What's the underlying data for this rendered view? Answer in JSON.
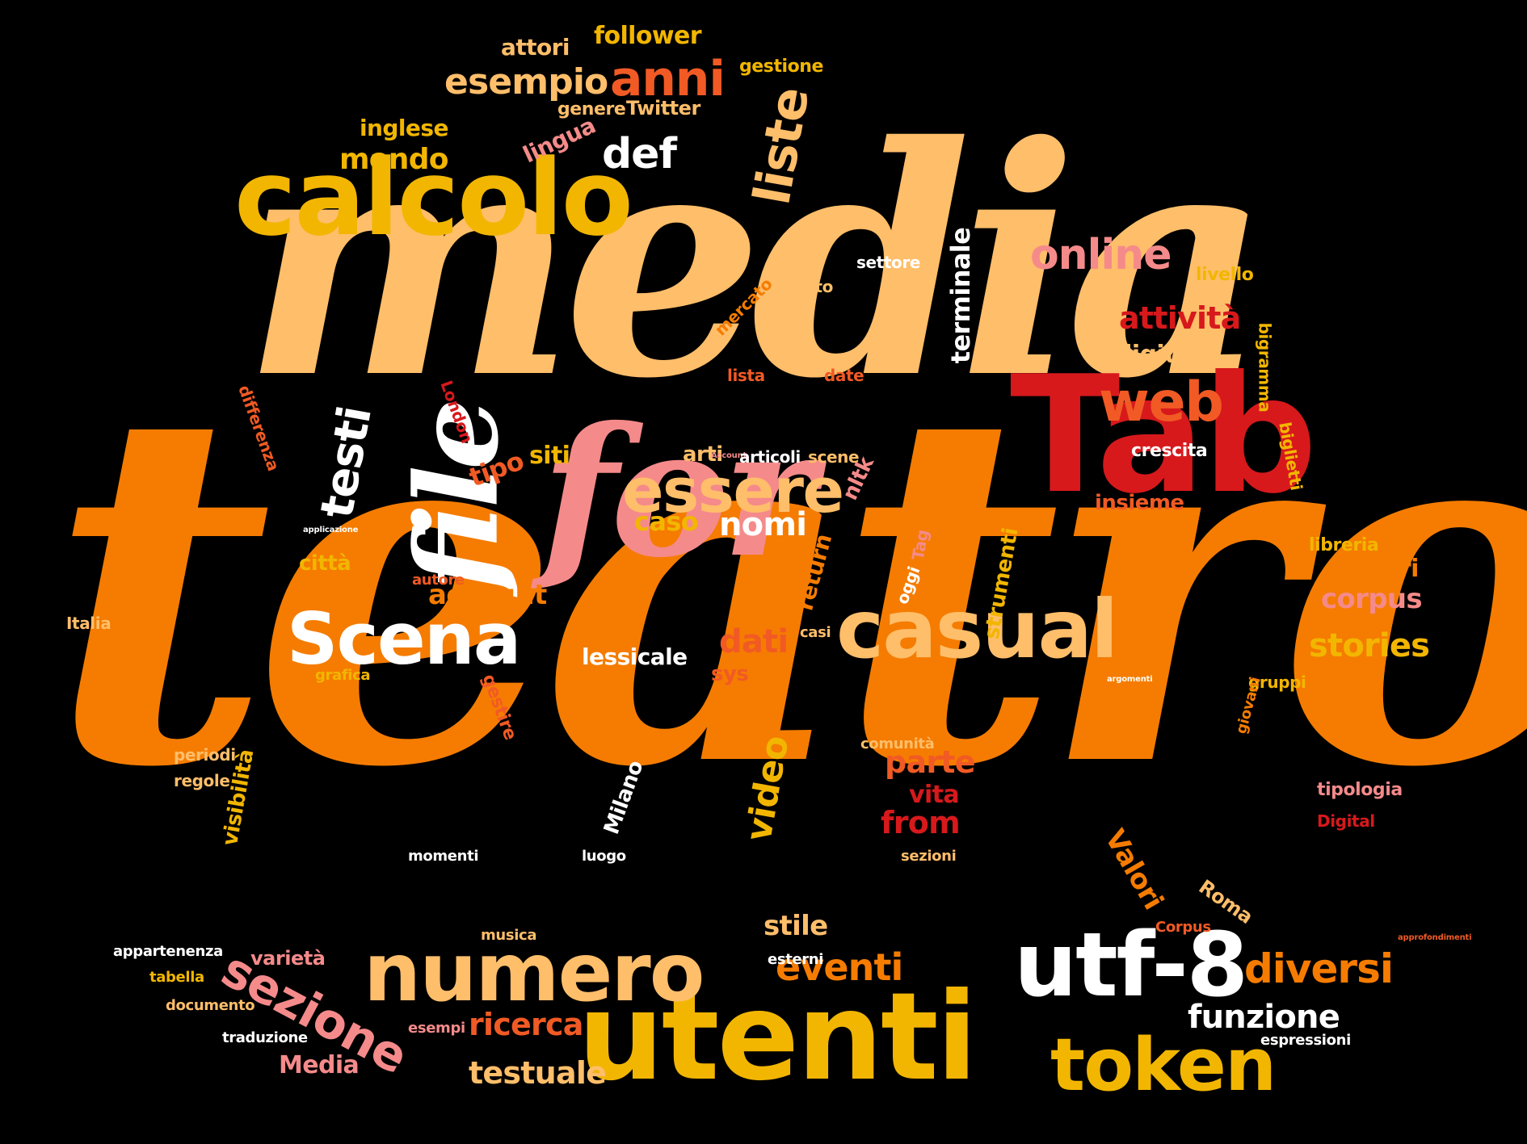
{
  "cloud": {
    "colors": {
      "background": "#000000",
      "orange": "#F57C00",
      "peach": "#FFBE6A",
      "gold": "#F2B600",
      "red": "#D7191C",
      "redorange": "#F15A24",
      "pink": "#F58A8A",
      "white": "#FFFFFF"
    },
    "words": [
      {
        "text": "teatro",
        "color": "#F57C00"
      },
      {
        "text": "media",
        "color": "#FFBE6A"
      },
      {
        "text": "calcolo",
        "color": "#F2B600"
      },
      {
        "text": "for",
        "color": "#F58A8A"
      },
      {
        "text": "Tab",
        "color": "#D7191C"
      },
      {
        "text": "file",
        "color": "#FFFFFF"
      },
      {
        "text": "utenti",
        "color": "#F2B600"
      },
      {
        "text": "numero",
        "color": "#FFBE6A"
      },
      {
        "text": "casual",
        "color": "#FFBE6A"
      },
      {
        "text": "essere",
        "color": "#FFBE6A"
      },
      {
        "text": "Scena",
        "color": "#FFFFFF"
      },
      {
        "text": "utf-8",
        "color": "#FFFFFF"
      },
      {
        "text": "token",
        "color": "#F2B600"
      },
      {
        "text": "liste",
        "color": "#FFBE6A"
      },
      {
        "text": "def",
        "color": "#FFFFFF"
      },
      {
        "text": "anni",
        "color": "#F15A24"
      },
      {
        "text": "esempio",
        "color": "#FFBE6A"
      },
      {
        "text": "web",
        "color": "#F15A24"
      },
      {
        "text": "online",
        "color": "#F58A8A"
      },
      {
        "text": "attività",
        "color": "#D7191C"
      },
      {
        "text": "sezione",
        "color": "#F58A8A"
      },
      {
        "text": "diversi",
        "color": "#F57C00"
      },
      {
        "text": "eventi",
        "color": "#F57C00"
      },
      {
        "text": "funzione",
        "color": "#FFFFFF"
      },
      {
        "text": "testuale",
        "color": "#FFBE6A"
      },
      {
        "text": "ricerca",
        "color": "#F15A24"
      },
      {
        "text": "stories",
        "color": "#F2B600"
      },
      {
        "text": "corpus",
        "color": "#F58A8A"
      },
      {
        "text": "teatri",
        "color": "#F57C00"
      },
      {
        "text": "nomi",
        "color": "#FFFFFF"
      },
      {
        "text": "caso",
        "color": "#F2B600"
      },
      {
        "text": "account",
        "color": "#F57C00"
      },
      {
        "text": "dati",
        "color": "#F15A24"
      },
      {
        "text": "testi",
        "color": "#FFFFFF"
      },
      {
        "text": "mondo",
        "color": "#F2B600"
      },
      {
        "text": "inglese",
        "color": "#F2B600"
      },
      {
        "text": "lingua",
        "color": "#F58A8A"
      },
      {
        "text": "attori",
        "color": "#FFBE6A"
      },
      {
        "text": "follower",
        "color": "#F2B600"
      },
      {
        "text": "gestione",
        "color": "#F2B600"
      },
      {
        "text": "genere",
        "color": "#FFBE6A"
      },
      {
        "text": "Twitter",
        "color": "#FFBE6A"
      },
      {
        "text": "terminale",
        "color": "#FFFFFF"
      },
      {
        "text": "digitale",
        "color": "#FFBE6A"
      },
      {
        "text": "settore",
        "color": "#FFFFFF"
      },
      {
        "text": "livello",
        "color": "#F2B600"
      },
      {
        "text": "oggetto",
        "color": "#FFBE6A"
      },
      {
        "text": "mercato",
        "color": "#F57C00"
      },
      {
        "text": "lista",
        "color": "#F15A24"
      },
      {
        "text": "date",
        "color": "#F15A24"
      },
      {
        "text": "bigramma",
        "color": "#F2B600"
      },
      {
        "text": "biglietti",
        "color": "#F2B600"
      },
      {
        "text": "differenza",
        "color": "#F15A24"
      },
      {
        "text": "London",
        "color": "#D7191C"
      },
      {
        "text": "arti",
        "color": "#FFBE6A"
      },
      {
        "text": "Account",
        "color": "#F58A8A"
      },
      {
        "text": "articoli",
        "color": "#FFFFFF"
      },
      {
        "text": "scene",
        "color": "#FFBE6A"
      },
      {
        "text": "nltk",
        "color": "#F58A8A"
      },
      {
        "text": "crescita",
        "color": "#FFFFFF"
      },
      {
        "text": "insieme",
        "color": "#F15A24"
      },
      {
        "text": "libreria",
        "color": "#F2B600"
      },
      {
        "text": "tipo",
        "color": "#F15A24"
      },
      {
        "text": "siti",
        "color": "#F2B600"
      },
      {
        "text": "applicazione",
        "color": "#FFFFFF"
      },
      {
        "text": "città",
        "color": "#F2B600"
      },
      {
        "text": "autore",
        "color": "#F15A24"
      },
      {
        "text": "Italia",
        "color": "#FFBE6A"
      },
      {
        "text": "casi",
        "color": "#FFBE6A"
      },
      {
        "text": "oggi",
        "color": "#FFFFFF"
      },
      {
        "text": "Tag",
        "color": "#F58A8A"
      },
      {
        "text": "return",
        "color": "#F57C00"
      },
      {
        "text": "strumenti",
        "color": "#F2B600"
      },
      {
        "text": "lessicale",
        "color": "#FFFFFF"
      },
      {
        "text": "sys",
        "color": "#F15A24"
      },
      {
        "text": "grafica",
        "color": "#F2B600"
      },
      {
        "text": "gestire",
        "color": "#F15A24"
      },
      {
        "text": "argomenti",
        "color": "#FFFFFF"
      },
      {
        "text": "gruppi",
        "color": "#F2B600"
      },
      {
        "text": "giovani",
        "color": "#F57C00"
      },
      {
        "text": "periodi",
        "color": "#FFBE6A"
      },
      {
        "text": "regole",
        "color": "#FFBE6A"
      },
      {
        "text": "visibilità",
        "color": "#F2B600"
      },
      {
        "text": "video",
        "color": "#F2B600"
      },
      {
        "text": "Milano",
        "color": "#FFFFFF"
      },
      {
        "text": "comunità",
        "color": "#FFBE6A"
      },
      {
        "text": "parte",
        "color": "#F15A24"
      },
      {
        "text": "vita",
        "color": "#D7191C"
      },
      {
        "text": "from",
        "color": "#D7191C"
      },
      {
        "text": "tipologia",
        "color": "#F58A8A"
      },
      {
        "text": "Digital",
        "color": "#D7191C"
      },
      {
        "text": "momenti",
        "color": "#FFFFFF"
      },
      {
        "text": "luogo",
        "color": "#FFFFFF"
      },
      {
        "text": "sezioni",
        "color": "#FFBE6A"
      },
      {
        "text": "Valori",
        "color": "#F57C00"
      },
      {
        "text": "Roma",
        "color": "#FFBE6A"
      },
      {
        "text": "Corpus",
        "color": "#F15A24"
      },
      {
        "text": "approfondimenti",
        "color": "#F15A24"
      },
      {
        "text": "musica",
        "color": "#FFBE6A"
      },
      {
        "text": "stile",
        "color": "#FFBE6A"
      },
      {
        "text": "esterni",
        "color": "#FFFFFF"
      },
      {
        "text": "appartenenza",
        "color": "#FFFFFF"
      },
      {
        "text": "tabella",
        "color": "#F2B600"
      },
      {
        "text": "varietà",
        "color": "#F58A8A"
      },
      {
        "text": "documento",
        "color": "#FFBE6A"
      },
      {
        "text": "traduzione",
        "color": "#FFFFFF"
      },
      {
        "text": "esempi",
        "color": "#F58A8A"
      },
      {
        "text": "Media",
        "color": "#F58A8A"
      },
      {
        "text": "espressioni",
        "color": "#FFFFFF"
      }
    ]
  }
}
